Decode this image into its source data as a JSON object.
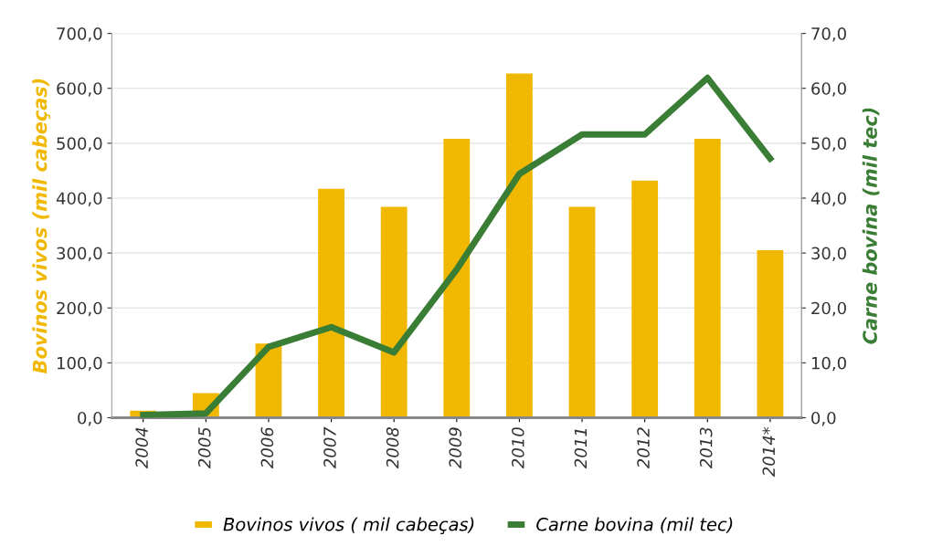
{
  "chart_data": {
    "type": "bar",
    "categories": [
      "2004",
      "2005",
      "2006",
      "2007",
      "2008",
      "2009",
      "2010",
      "2011",
      "2012",
      "2013",
      "2014*"
    ],
    "ylabel": "Bovinos vivos (mil cabeças)",
    "y2label": "Carne bovina (mil tec)",
    "series": [
      {
        "name": "Bovinos vivos ( mil cabeças)",
        "color": "#f0b800",
        "values": [
          13,
          45,
          135,
          417,
          384,
          508,
          627,
          384,
          432,
          508,
          305
        ]
      },
      {
        "name": "Carne bovina (mil tec)",
        "type": "line",
        "axis": "y2",
        "color": "#3a7d35",
        "values": [
          0.5,
          0.8,
          12.9,
          16.5,
          11.9,
          27,
          44.4,
          51.6,
          51.6,
          61.9,
          47.2
        ]
      }
    ],
    "ylim": [
      0,
      700
    ],
    "yticks": [
      {
        "value": 0,
        "label": "0,0"
      },
      {
        "value": 100,
        "label": "100,0"
      },
      {
        "value": 200,
        "label": "200,0"
      },
      {
        "value": 300,
        "label": "300,0"
      },
      {
        "value": 400,
        "label": "400,0"
      },
      {
        "value": 500,
        "label": "500,0"
      },
      {
        "value": 600,
        "label": "600,0"
      },
      {
        "value": 700,
        "label": "700,0"
      }
    ],
    "y2lim": [
      0,
      70
    ],
    "y2ticks": [
      {
        "value": 0,
        "label": "0,0"
      },
      {
        "value": 10,
        "label": "10,0"
      },
      {
        "value": 20,
        "label": "20,0"
      },
      {
        "value": 30,
        "label": "30,0"
      },
      {
        "value": 40,
        "label": "40,0"
      },
      {
        "value": 50,
        "label": "50,0"
      },
      {
        "value": 60,
        "label": "60,0"
      },
      {
        "value": 70,
        "label": "70,0"
      }
    ],
    "grid": "y",
    "legend": "bottom",
    "line_style": "solid",
    "marker": "none"
  }
}
